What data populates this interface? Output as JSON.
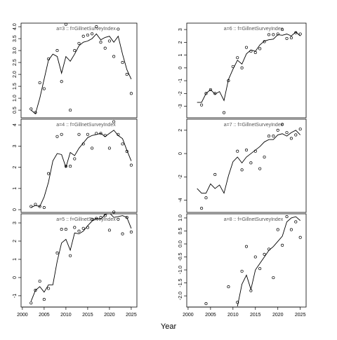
{
  "xlabel": "Year",
  "chart_data": [
    {
      "type": "line",
      "title": "a=3 :: f=GillnetSurveyIndex",
      "x": [
        2002,
        2003,
        2004,
        2005,
        2006,
        2007,
        2008,
        2009,
        2010,
        2011,
        2012,
        2013,
        2014,
        2015,
        2016,
        2017,
        2018,
        2019,
        2020,
        2021,
        2022,
        2023,
        2024,
        2025
      ],
      "xlim": [
        1999.7,
        2026.3
      ],
      "ylim": [
        0.18,
        4.15
      ],
      "yticks": [
        0.5,
        {
          "value": 1,
          "label": "1.0"
        },
        1.5,
        {
          "value": 2,
          "label": "2.0"
        },
        2.5,
        {
          "value": 3,
          "label": "3.0"
        },
        3.5,
        {
          "value": 4,
          "label": "4.0"
        }
      ],
      "observed": [
        0.55,
        0.4,
        1.65,
        1.4,
        2.65,
        null,
        3.0,
        1.7,
        4.1,
        0.5,
        3.0,
        3.3,
        3.6,
        3.65,
        3.7,
        4.0,
        3.35,
        3.1,
        3.4,
        2.75,
        3.9,
        2.5,
        2.0,
        1.2
      ],
      "fitted": [
        0.5,
        0.35,
        1.0,
        1.8,
        2.6,
        2.85,
        2.75,
        2.05,
        2.75,
        2.55,
        2.85,
        3.2,
        3.35,
        3.4,
        3.5,
        3.7,
        3.45,
        3.55,
        3.6,
        3.35,
        3.6,
        2.85,
        2.2,
        1.8
      ]
    },
    {
      "type": "line",
      "title": "a=6 :: f=GillnetSurveyIndex",
      "x": [
        2002,
        2003,
        2004,
        2005,
        2006,
        2007,
        2008,
        2009,
        2010,
        2011,
        2012,
        2013,
        2014,
        2015,
        2016,
        2017,
        2018,
        2019,
        2020,
        2021,
        2022,
        2023,
        2024,
        2025
      ],
      "xlim": [
        1999.7,
        2026.3
      ],
      "ylim": [
        -3.9,
        3.5
      ],
      "yticks": [
        -3,
        -2,
        -1,
        0,
        1,
        2,
        3
      ],
      "observed": [
        null,
        -2.9,
        -2.0,
        -1.7,
        -2.0,
        null,
        -3.5,
        -1.0,
        0.1,
        0.8,
        0.0,
        1.6,
        1.3,
        1.2,
        1.5,
        2.05,
        2.6,
        2.6,
        2.65,
        3.0,
        2.3,
        2.35,
        2.75,
        2.65
      ],
      "fitted": [
        -2.7,
        -2.7,
        -2.0,
        -1.7,
        -2.05,
        -1.85,
        -2.55,
        -0.9,
        -0.1,
        0.6,
        0.3,
        1.1,
        1.4,
        1.3,
        1.8,
        2.1,
        2.2,
        2.25,
        2.6,
        2.55,
        2.65,
        2.5,
        2.8,
        2.5
      ]
    },
    {
      "type": "line",
      "title": "a=4 :: f=GillnetSurveyIndex",
      "x": [
        2002,
        2003,
        2004,
        2005,
        2006,
        2007,
        2008,
        2009,
        2010,
        2011,
        2012,
        2013,
        2014,
        2015,
        2016,
        2017,
        2018,
        2019,
        2020,
        2021,
        2022,
        2023,
        2024,
        2025
      ],
      "xlim": [
        1999.7,
        2026.3
      ],
      "ylim": [
        -0.13,
        4.27
      ],
      "yticks": [
        0,
        1,
        2,
        3,
        4
      ],
      "observed": [
        0.15,
        0.25,
        0.15,
        0.1,
        1.7,
        null,
        3.45,
        3.55,
        2.05,
        2.05,
        2.4,
        3.55,
        3.1,
        3.55,
        2.9,
        3.6,
        3.6,
        3.5,
        2.9,
        4.15,
        3.55,
        3.1,
        2.75,
        2.1
      ],
      "fitted": [
        0.1,
        0.2,
        0.15,
        0.6,
        1.3,
        2.3,
        2.65,
        2.6,
        2.0,
        2.7,
        2.55,
        2.9,
        3.15,
        3.4,
        3.5,
        3.55,
        3.6,
        3.45,
        3.6,
        3.75,
        3.5,
        3.35,
        2.8,
        2.3
      ]
    },
    {
      "type": "line",
      "title": "a=7 :: f=GillnetSurveyIndex",
      "x": [
        2002,
        2003,
        2004,
        2005,
        2006,
        2007,
        2008,
        2009,
        2010,
        2011,
        2012,
        2013,
        2014,
        2015,
        2016,
        2017,
        2018,
        2019,
        2020,
        2021,
        2022,
        2023,
        2024,
        2025
      ],
      "xlim": [
        1999.7,
        2026.3
      ],
      "ylim": [
        -5.05,
        2.95
      ],
      "yticks": [
        -4,
        -2,
        0,
        2
      ],
      "observed": [
        null,
        -4.7,
        -3.8,
        null,
        -1.8,
        null,
        null,
        null,
        null,
        0.2,
        -1.4,
        0.3,
        -0.8,
        0.2,
        -1.3,
        -0.3,
        1.5,
        1.5,
        2.0,
        2.5,
        1.8,
        1.3,
        1.6,
        2.1
      ],
      "fitted": [
        -3.0,
        -3.4,
        -3.4,
        -2.6,
        -3.0,
        -2.7,
        -3.4,
        -1.9,
        -0.7,
        -0.3,
        -0.8,
        -0.3,
        0.0,
        0.3,
        0.6,
        1.0,
        1.2,
        1.2,
        1.6,
        1.7,
        1.5,
        1.8,
        2.0,
        1.6
      ]
    },
    {
      "type": "line",
      "title": "a=5 :: f=GillnetSurveyIndex",
      "x": [
        2002,
        2003,
        2004,
        2005,
        2006,
        2007,
        2008,
        2009,
        2010,
        2011,
        2012,
        2013,
        2014,
        2015,
        2016,
        2017,
        2018,
        2019,
        2020,
        2021,
        2022,
        2023,
        2024,
        2025
      ],
      "xlim": [
        1999.7,
        2026.3
      ],
      "ylim": [
        -1.62,
        3.5
      ],
      "yticks": [
        -1,
        0,
        1,
        2,
        3
      ],
      "xticks": [
        2000,
        2005,
        2010,
        2015,
        2020,
        2025
      ],
      "observed": [
        -1.4,
        -0.7,
        -0.2,
        -1.2,
        -0.6,
        null,
        1.35,
        2.65,
        2.65,
        1.2,
        2.75,
        2.55,
        2.7,
        2.75,
        3.2,
        3.25,
        3.3,
        3.4,
        2.6,
        3.6,
        3.2,
        2.4,
        3.3,
        2.5
      ],
      "fitted": [
        -1.3,
        -0.7,
        -0.5,
        -0.8,
        -0.4,
        -0.4,
        0.9,
        1.9,
        2.1,
        1.5,
        2.45,
        2.4,
        2.55,
        2.85,
        3.1,
        3.25,
        3.2,
        3.45,
        3.55,
        3.3,
        3.35,
        3.4,
        3.3,
        2.7
      ]
    },
    {
      "type": "line",
      "title": "a=8 :: f=GillnetSurveyIndex",
      "x": [
        2002,
        2003,
        2004,
        2005,
        2006,
        2007,
        2008,
        2009,
        2010,
        2011,
        2012,
        2013,
        2014,
        2015,
        2016,
        2017,
        2018,
        2019,
        2020,
        2021,
        2022,
        2023,
        2024,
        2025
      ],
      "xlim": [
        1999.7,
        2026.3
      ],
      "ylim": [
        -2.43,
        1.16
      ],
      "yticks": [
        {
          "value": -2,
          "label": "-2.0"
        },
        -1.5,
        {
          "value": -1,
          "label": "-1.0"
        },
        -0.5,
        {
          "value": 0,
          "label": "0.0"
        },
        0.5,
        {
          "value": 1,
          "label": "1.0"
        }
      ],
      "xticks": [
        2000,
        2005,
        2010,
        2015,
        2020,
        2025
      ],
      "observed": [
        null,
        null,
        -2.3,
        null,
        null,
        null,
        null,
        -1.65,
        null,
        -2.25,
        -1.05,
        -0.1,
        -1.8,
        -0.5,
        -0.95,
        -0.4,
        -0.2,
        -1.3,
        0.55,
        -0.05,
        1.05,
        0.55,
        0.85,
        0.25
      ],
      "fitted": [
        null,
        null,
        null,
        null,
        null,
        null,
        null,
        null,
        null,
        -2.4,
        -1.55,
        -1.2,
        -1.75,
        -1.0,
        -0.75,
        -0.5,
        -0.25,
        -0.1,
        0.1,
        0.3,
        0.85,
        1.0,
        1.05,
        0.9
      ]
    }
  ]
}
